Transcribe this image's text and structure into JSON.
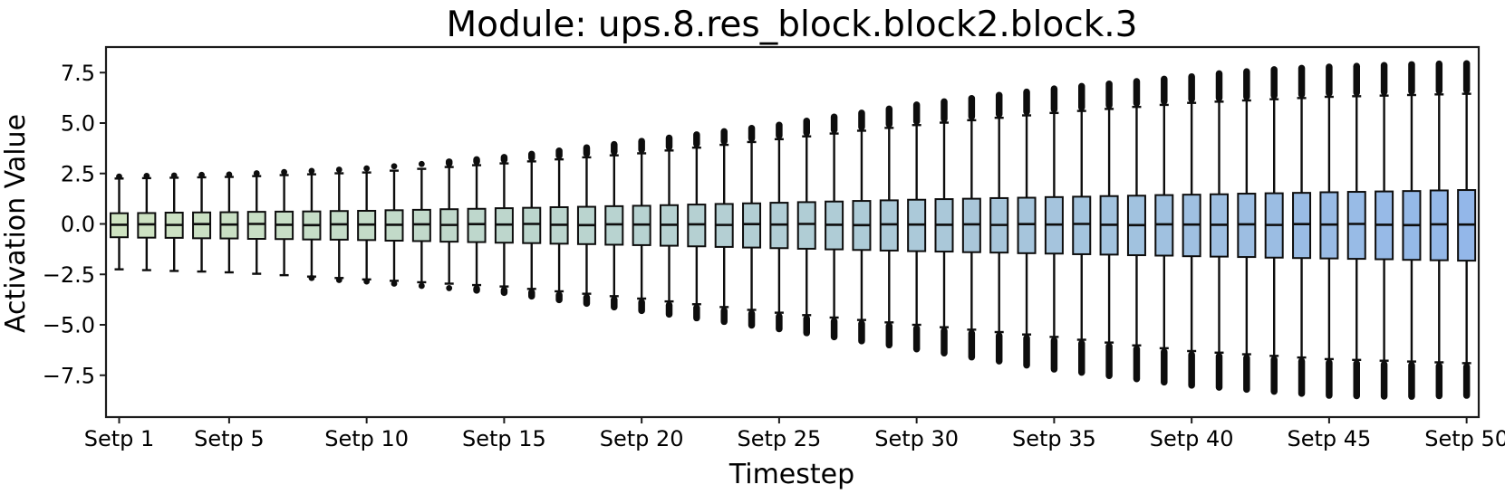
{
  "figure": {
    "background": "#ffffff",
    "frame_color": "#1c1c1c",
    "edge_color": "#0d0d0d",
    "box_color_start": "#cee3c1",
    "box_color_end": "#93b7e9"
  },
  "chart_data": {
    "type": "boxplot",
    "title": "Module: ups.8.res_block.block2.block.3",
    "xlabel": "Timestep",
    "ylabel": "Activation Value",
    "ylim": [
      -9.6,
      8.8
    ],
    "grid": false,
    "yticks": [
      7.5,
      5.0,
      2.5,
      0.0,
      -2.5,
      -5.0,
      -7.5
    ],
    "ytick_labels": [
      "7.5",
      "5.0",
      "2.5",
      "0.0",
      "−2.5",
      "−5.0",
      "−7.5"
    ],
    "xtick_steps": [
      1,
      5,
      10,
      15,
      20,
      25,
      30,
      35,
      40,
      45,
      50
    ],
    "xtick_labels": [
      "Setp 1",
      "Setp 5",
      "Setp 10",
      "Setp 15",
      "Setp 20",
      "Setp 25",
      "Setp 30",
      "Setp 35",
      "Setp 40",
      "Setp 45",
      "Setp 50"
    ],
    "steps": [
      1,
      2,
      3,
      4,
      5,
      6,
      7,
      8,
      9,
      10,
      11,
      12,
      13,
      14,
      15,
      16,
      17,
      18,
      19,
      20,
      21,
      22,
      23,
      24,
      25,
      26,
      27,
      28,
      29,
      30,
      31,
      32,
      33,
      34,
      35,
      36,
      37,
      38,
      39,
      40,
      41,
      42,
      43,
      44,
      45,
      46,
      47,
      48,
      49,
      50
    ],
    "median": [
      -0.04,
      -0.02,
      -0.05,
      -0.01,
      -0.03,
      0.0,
      -0.04,
      -0.06,
      -0.02,
      -0.03,
      -0.04,
      -0.02,
      -0.05,
      -0.01,
      -0.03,
      0.0,
      -0.04,
      -0.06,
      -0.02,
      -0.03,
      -0.04,
      -0.02,
      -0.05,
      -0.01,
      -0.03,
      0.0,
      -0.04,
      -0.06,
      -0.02,
      -0.03,
      -0.04,
      -0.02,
      -0.05,
      -0.01,
      -0.03,
      0.0,
      -0.04,
      -0.06,
      -0.02,
      -0.03,
      -0.04,
      -0.02,
      -0.05,
      -0.01,
      -0.03,
      0.0,
      -0.04,
      -0.06,
      -0.02,
      -0.03
    ],
    "q3": [
      0.53,
      0.54,
      0.56,
      0.57,
      0.58,
      0.6,
      0.61,
      0.62,
      0.64,
      0.65,
      0.68,
      0.7,
      0.73,
      0.75,
      0.78,
      0.8,
      0.83,
      0.85,
      0.88,
      0.9,
      0.93,
      0.96,
      0.99,
      1.02,
      1.05,
      1.08,
      1.11,
      1.14,
      1.17,
      1.2,
      1.23,
      1.25,
      1.28,
      1.3,
      1.33,
      1.35,
      1.38,
      1.4,
      1.43,
      1.45,
      1.47,
      1.5,
      1.52,
      1.54,
      1.57,
      1.59,
      1.61,
      1.63,
      1.66,
      1.68
    ],
    "q1": [
      -0.66,
      -0.68,
      -0.69,
      -0.71,
      -0.72,
      -0.74,
      -0.75,
      -0.77,
      -0.78,
      -0.8,
      -0.83,
      -0.85,
      -0.88,
      -0.9,
      -0.93,
      -0.95,
      -0.98,
      -1.0,
      -1.03,
      -1.05,
      -1.08,
      -1.11,
      -1.14,
      -1.17,
      -1.2,
      -1.23,
      -1.26,
      -1.29,
      -1.32,
      -1.35,
      -1.37,
      -1.4,
      -1.42,
      -1.45,
      -1.47,
      -1.5,
      -1.52,
      -1.55,
      -1.57,
      -1.6,
      -1.62,
      -1.64,
      -1.67,
      -1.69,
      -1.71,
      -1.73,
      -1.75,
      -1.78,
      -1.8,
      -1.82
    ],
    "whishi": [
      2.25,
      2.27,
      2.29,
      2.31,
      2.33,
      2.37,
      2.42,
      2.46,
      2.51,
      2.55,
      2.64,
      2.73,
      2.82,
      2.91,
      3.0,
      3.1,
      3.2,
      3.3,
      3.4,
      3.5,
      3.64,
      3.78,
      3.92,
      4.06,
      4.2,
      4.34,
      4.48,
      4.62,
      4.76,
      4.9,
      5.02,
      5.14,
      5.26,
      5.38,
      5.5,
      5.6,
      5.7,
      5.8,
      5.9,
      6.0,
      6.06,
      6.12,
      6.18,
      6.24,
      6.3,
      6.33,
      6.36,
      6.39,
      6.42,
      6.45
    ],
    "whislo": [
      -2.25,
      -2.29,
      -2.33,
      -2.36,
      -2.4,
      -2.47,
      -2.54,
      -2.61,
      -2.68,
      -2.75,
      -2.82,
      -2.89,
      -2.96,
      -3.03,
      -3.1,
      -3.22,
      -3.34,
      -3.46,
      -3.58,
      -3.7,
      -3.84,
      -3.98,
      -4.12,
      -4.26,
      -4.4,
      -4.52,
      -4.64,
      -4.76,
      -4.88,
      -5.0,
      -5.12,
      -5.24,
      -5.36,
      -5.48,
      -5.6,
      -5.74,
      -5.88,
      -6.02,
      -6.16,
      -6.3,
      -6.38,
      -6.46,
      -6.54,
      -6.62,
      -6.7,
      -6.74,
      -6.78,
      -6.82,
      -6.86,
      -6.9
    ],
    "flier_hi": [
      2.35,
      2.38,
      2.4,
      2.43,
      2.45,
      2.51,
      2.57,
      2.63,
      2.69,
      2.75,
      2.86,
      2.97,
      3.08,
      3.19,
      3.3,
      3.46,
      3.62,
      3.78,
      3.94,
      4.1,
      4.26,
      4.42,
      4.58,
      4.74,
      4.9,
      5.1,
      5.3,
      5.5,
      5.7,
      5.9,
      6.06,
      6.22,
      6.38,
      6.54,
      6.7,
      6.82,
      6.94,
      7.06,
      7.18,
      7.3,
      7.45,
      7.55,
      7.65,
      7.72,
      7.78,
      7.82,
      7.86,
      7.9,
      7.93,
      7.95
    ],
    "flier_lo": [
      -2.27,
      -2.31,
      -2.36,
      -2.41,
      -2.46,
      -2.52,
      -2.6,
      -2.68,
      -2.78,
      -2.85,
      -2.96,
      -3.07,
      -3.18,
      -3.29,
      -3.4,
      -3.58,
      -3.76,
      -3.94,
      -4.12,
      -4.3,
      -4.48,
      -4.66,
      -4.84,
      -5.02,
      -5.2,
      -5.4,
      -5.6,
      -5.8,
      -6.0,
      -6.2,
      -6.4,
      -6.6,
      -6.8,
      -7.0,
      -7.2,
      -7.36,
      -7.52,
      -7.68,
      -7.84,
      -8.0,
      -8.1,
      -8.2,
      -8.3,
      -8.4,
      -8.5,
      -8.52,
      -8.54,
      -8.55,
      -8.52,
      -8.5
    ]
  }
}
